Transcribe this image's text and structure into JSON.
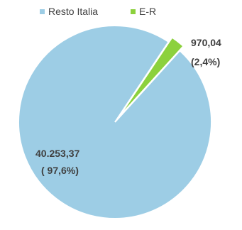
{
  "chart_data": {
    "type": "pie",
    "categories": [
      "Resto Italia",
      "E-R"
    ],
    "values": [
      40253.37,
      970.04
    ],
    "percentages": [
      97.6,
      2.4
    ],
    "colors": [
      "#9dcde5",
      "#8cd13d"
    ],
    "legend_position": "top",
    "data_labels": [
      {
        "value": "40.253,37",
        "percent": "( 97,6%)"
      },
      {
        "value": "970,04",
        "percent": "(2,4%)"
      }
    ]
  },
  "legend": {
    "items": [
      {
        "label": "Resto Italia",
        "color": "#9dcde5"
      },
      {
        "label": "E-R",
        "color": "#8cd13d"
      }
    ]
  }
}
